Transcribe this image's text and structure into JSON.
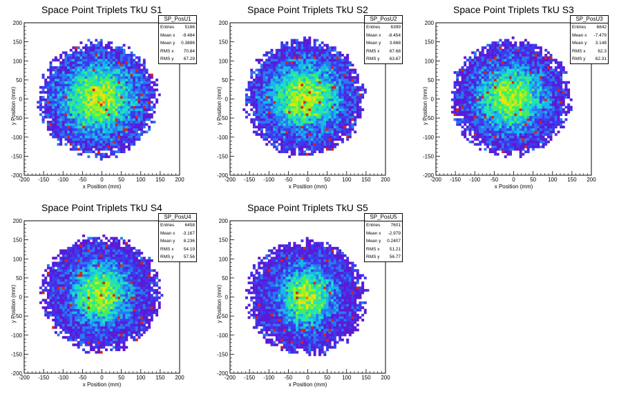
{
  "chart_data": [
    {
      "type": "heatmap",
      "title": "Space Point Triplets TkU S1",
      "xlabel": "x Position (mm)",
      "ylabel": "y Position (mm)",
      "xlim": [
        -200,
        200
      ],
      "ylim": [
        -200,
        200
      ],
      "x_ticks": [
        "-200",
        "-150",
        "-100",
        "-50",
        "0",
        "50",
        "100",
        "150",
        "200"
      ],
      "y_ticks": [
        "-200",
        "-150",
        "-100",
        "-50",
        "0",
        "50",
        "100",
        "150",
        "200"
      ],
      "stats": {
        "name": "SP_PosU1",
        "rows": [
          {
            "label": "Entries",
            "value": "5186"
          },
          {
            "label": "Mean x",
            "value": "-9.484"
          },
          {
            "label": "Mean y",
            "value": "0.3886"
          },
          {
            "label": "RMS x",
            "value": "70.84"
          },
          {
            "label": "RMS y",
            "value": "67.29"
          }
        ]
      },
      "center_x": -9.484,
      "center_y": 0.3886,
      "rms_x": 70.84,
      "rms_y": 67.29,
      "radius": 160,
      "entries": 5186
    },
    {
      "type": "heatmap",
      "title": "Space Point Triplets TkU S2",
      "xlabel": "x Position (mm)",
      "ylabel": "y Position (mm)",
      "xlim": [
        -200,
        200
      ],
      "ylim": [
        -200,
        200
      ],
      "x_ticks": [
        "-200",
        "-150",
        "-100",
        "-50",
        "0",
        "50",
        "100",
        "150",
        "200"
      ],
      "y_ticks": [
        "-200",
        "-150",
        "-100",
        "-50",
        "0",
        "50",
        "100",
        "150",
        "200"
      ],
      "stats": {
        "name": "SP_PosU2",
        "rows": [
          {
            "label": "Entries",
            "value": "6399"
          },
          {
            "label": "Mean x",
            "value": "-8.454"
          },
          {
            "label": "Mean y",
            "value": "3.668"
          },
          {
            "label": "RMS x",
            "value": "67.68"
          },
          {
            "label": "RMS y",
            "value": "63.67"
          }
        ]
      },
      "center_x": -8.454,
      "center_y": 3.668,
      "rms_x": 67.68,
      "rms_y": 63.67,
      "radius": 160,
      "entries": 6399
    },
    {
      "type": "heatmap",
      "title": "Space Point Triplets TkU S3",
      "xlabel": "x Position (mm)",
      "ylabel": "y Position (mm)",
      "xlim": [
        -200,
        200
      ],
      "ylim": [
        -200,
        200
      ],
      "x_ticks": [
        "-200",
        "-150",
        "-100",
        "-50",
        "0",
        "50",
        "100",
        "150",
        "200"
      ],
      "y_ticks": [
        "-200",
        "-150",
        "-100",
        "-50",
        "0",
        "50",
        "100",
        "150",
        "200"
      ],
      "stats": {
        "name": "SP_PosU3",
        "rows": [
          {
            "label": "Entries",
            "value": "6842"
          },
          {
            "label": "Mean x",
            "value": "-7.479"
          },
          {
            "label": "Mean y",
            "value": "3.148"
          },
          {
            "label": "RMS x",
            "value": "62.3"
          },
          {
            "label": "RMS y",
            "value": "62.31"
          }
        ]
      },
      "center_x": -7.479,
      "center_y": 3.148,
      "rms_x": 62.3,
      "rms_y": 62.31,
      "radius": 160,
      "entries": 6842
    },
    {
      "type": "heatmap",
      "title": "Space Point Triplets TkU S4",
      "xlabel": "x Position (mm)",
      "ylabel": "y Position (mm)",
      "xlim": [
        -200,
        200
      ],
      "ylim": [
        -200,
        200
      ],
      "x_ticks": [
        "-200",
        "-150",
        "-100",
        "-50",
        "0",
        "50",
        "100",
        "150",
        "200"
      ],
      "y_ticks": [
        "-200",
        "-150",
        "-100",
        "-50",
        "0",
        "50",
        "100",
        "150",
        "200"
      ],
      "stats": {
        "name": "SP_PosU4",
        "rows": [
          {
            "label": "Entries",
            "value": "6458"
          },
          {
            "label": "Mean x",
            "value": "-3.167"
          },
          {
            "label": "Mean y",
            "value": "8.236"
          },
          {
            "label": "RMS x",
            "value": "54.19"
          },
          {
            "label": "RMS y",
            "value": "57.56"
          }
        ]
      },
      "center_x": -3.167,
      "center_y": 8.236,
      "rms_x": 54.19,
      "rms_y": 57.56,
      "radius": 160,
      "entries": 6458
    },
    {
      "type": "heatmap",
      "title": "Space Point Triplets TkU S5",
      "xlabel": "x Position (mm)",
      "ylabel": "y Position (mm)",
      "xlim": [
        -200,
        200
      ],
      "ylim": [
        -200,
        200
      ],
      "x_ticks": [
        "-200",
        "-150",
        "-100",
        "-50",
        "0",
        "50",
        "100",
        "150",
        "200"
      ],
      "y_ticks": [
        "-200",
        "-150",
        "-100",
        "-50",
        "0",
        "50",
        "100",
        "150",
        "200"
      ],
      "stats": {
        "name": "SP_PosU5",
        "rows": [
          {
            "label": "Entries",
            "value": "7601"
          },
          {
            "label": "Mean x",
            "value": "-2.979"
          },
          {
            "label": "Mean y",
            "value": "0.2407"
          },
          {
            "label": "RMS x",
            "value": "51.21"
          },
          {
            "label": "RMS y",
            "value": "56.77"
          }
        ]
      },
      "center_x": -2.979,
      "center_y": 0.2407,
      "rms_x": 51.21,
      "rms_y": 56.77,
      "radius": 160,
      "entries": 7601
    }
  ],
  "palette": [
    "#5a1bd6",
    "#3a3cf0",
    "#2a78f0",
    "#18b8e8",
    "#20e0c0",
    "#40f060",
    "#a0f020",
    "#f0e010",
    "#f08010",
    "#e02010"
  ]
}
